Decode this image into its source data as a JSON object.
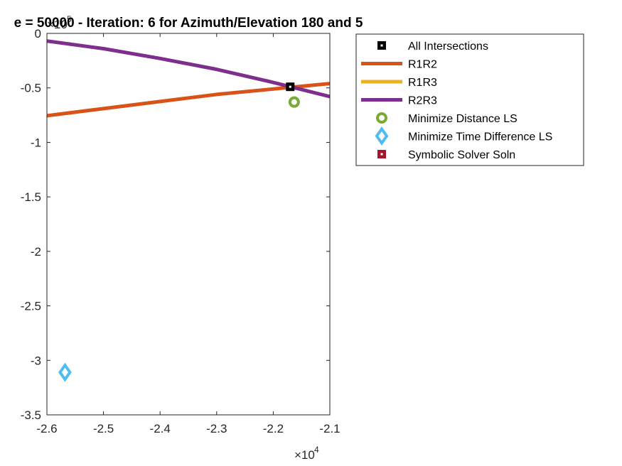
{
  "chart_data": {
    "type": "line",
    "title": "e = 50000 - Iteration: 6 for Azimuth/Elevation 180 and 5",
    "xlabel": "",
    "ylabel": "",
    "xlim": [
      -2.6,
      -2.1
    ],
    "ylim": [
      -3.5,
      0
    ],
    "x_ticks": [
      "-2.6",
      "-2.5",
      "-2.4",
      "-2.3",
      "-2.2",
      "-2.1"
    ],
    "y_ticks": [
      "0",
      "-0.5",
      "-1",
      "-1.5",
      "-2",
      "-2.5",
      "-3",
      "-3.5"
    ],
    "x_exponent": {
      "base": "×10",
      "power": "4"
    },
    "y_exponent": {
      "base": "×10",
      "power": "5"
    },
    "grid": false,
    "legend_position": "top-right-outside",
    "series": [
      {
        "name": "All Intersections",
        "kind": "marker",
        "marker": "square",
        "color": "#000000",
        "x": [
          -2.17
        ],
        "y": [
          -0.49
        ]
      },
      {
        "name": "R1R2",
        "kind": "line",
        "color": "#D95319",
        "x": [
          -2.6,
          -2.5,
          -2.4,
          -2.3,
          -2.2,
          -2.1
        ],
        "y": [
          -0.755,
          -0.69,
          -0.625,
          -0.56,
          -0.51,
          -0.46
        ]
      },
      {
        "name": "R1R3",
        "kind": "line",
        "color": "#EDB120",
        "x": [],
        "y": []
      },
      {
        "name": "R2R3",
        "kind": "line",
        "color": "#7E2F8E",
        "x": [
          -2.6,
          -2.5,
          -2.4,
          -2.3,
          -2.2,
          -2.1
        ],
        "y": [
          -0.07,
          -0.14,
          -0.23,
          -0.33,
          -0.45,
          -0.58
        ]
      },
      {
        "name": "Minimize Distance LS",
        "kind": "marker",
        "marker": "circle",
        "color": "#77AC30",
        "x": [
          -2.163
        ],
        "y": [
          -0.63
        ]
      },
      {
        "name": "Minimize Time Difference LS",
        "kind": "marker",
        "marker": "diamond",
        "color": "#4DBEEE",
        "x": [
          -2.568
        ],
        "y": [
          -3.11
        ]
      },
      {
        "name": "Symbolic Solver Soln",
        "kind": "marker",
        "marker": "square",
        "color": "#A2142F",
        "x": [],
        "y": []
      }
    ]
  }
}
